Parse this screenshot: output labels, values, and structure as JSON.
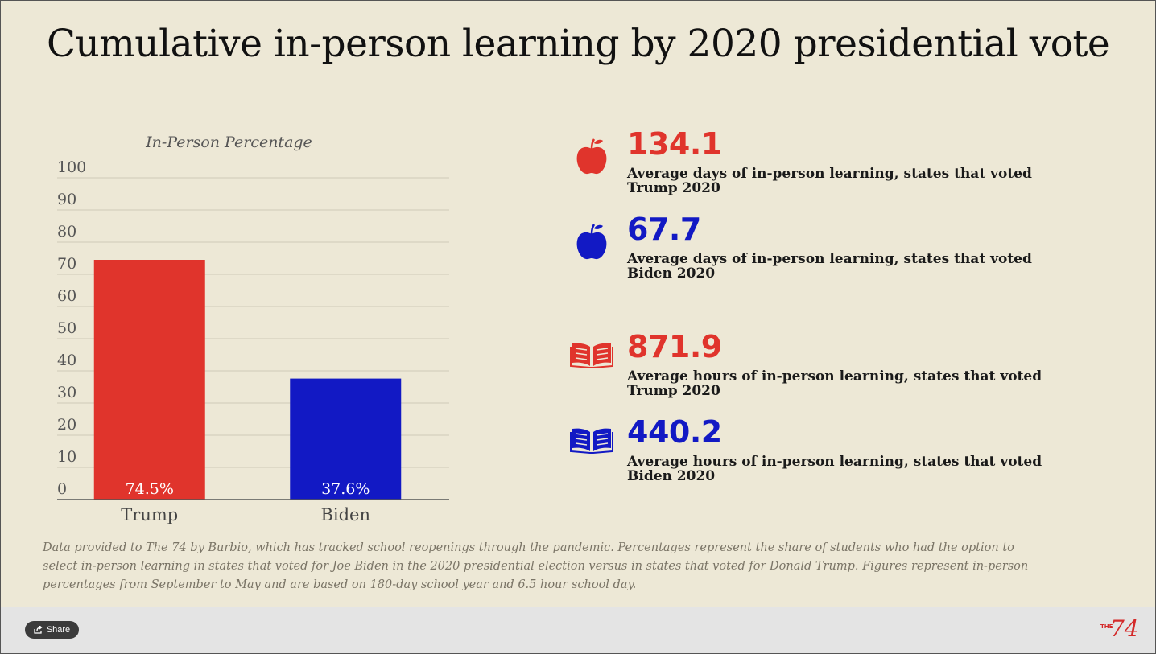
{
  "title": "Cumulative in-person learning by 2020 presidential vote",
  "chart_data": {
    "type": "bar",
    "title": "In-Person Percentage",
    "categories": [
      "Trump",
      "Biden"
    ],
    "values": [
      74.5,
      37.6
    ],
    "data_labels": [
      "74.5%",
      "37.6%"
    ],
    "colors": [
      "#e0342c",
      "#1219c4"
    ],
    "ylim": [
      0,
      100
    ],
    "yticks": [
      0,
      10,
      20,
      30,
      40,
      50,
      60,
      70,
      80,
      90,
      100
    ],
    "grid": true,
    "xlabel": "",
    "ylabel": ""
  },
  "stats": [
    {
      "value": "134.1",
      "label": "Average days of in-person learning, states that voted Trump 2020",
      "color": "#e0342c",
      "icon": "apple-icon"
    },
    {
      "value": "67.7",
      "label": "Average days of in-person learning, states that voted Biden 2020",
      "color": "#1219c4",
      "icon": "apple-icon"
    },
    {
      "value": "871.9",
      "label": "Average hours of in-person learning, states that voted Trump 2020",
      "color": "#e0342c",
      "icon": "book-icon"
    },
    {
      "value": "440.2",
      "label": "Average hours of in-person learning, states that voted Biden 2020",
      "color": "#1219c4",
      "icon": "book-icon"
    }
  ],
  "footnote": "Data provided to The 74 by Burbio, which has tracked school reopenings through the pandemic. Percentages represent the share of students who had the option to select in-person learning in states that voted for Joe Biden in the 2020 presidential election versus in states that voted for Donald Trump. Figures represent in-person percentages from September to May and are based on 180-day school year and 6.5 hour school day.",
  "footer": {
    "share_label": "Share",
    "logo_the": "THE",
    "logo_number": "74"
  }
}
